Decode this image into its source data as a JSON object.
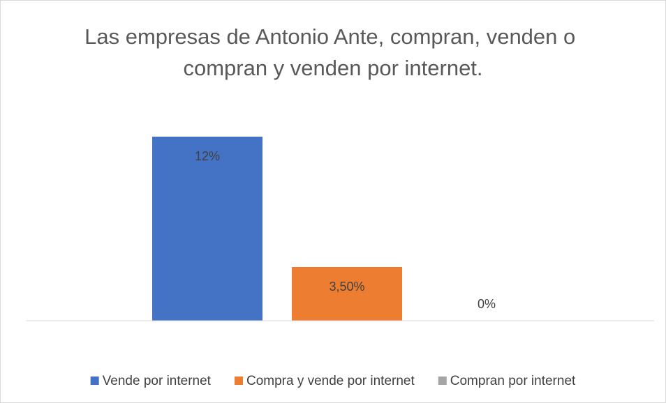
{
  "chart_data": {
    "type": "bar",
    "title": "Las empresas de Antonio Ante, compran, venden o compran y venden por internet.",
    "categories": [
      null
    ],
    "series": [
      {
        "name": "Vende por internet",
        "color": "#4472c4",
        "values": [
          12
        ],
        "value_labels": [
          "12%"
        ]
      },
      {
        "name": "Compra y vende por internet",
        "color": "#ed7d31",
        "values": [
          3.5
        ],
        "value_labels": [
          "3,50%"
        ]
      },
      {
        "name": "Compran por internet",
        "color": "#a5a5a5",
        "values": [
          0
        ],
        "value_labels": [
          "0%"
        ]
      }
    ],
    "ylim": [
      0,
      14
    ],
    "legend": "bottom"
  }
}
